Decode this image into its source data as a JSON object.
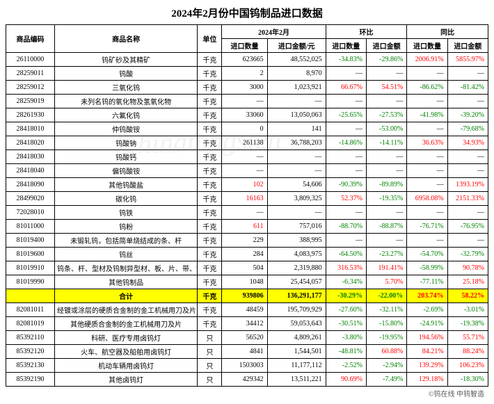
{
  "title": "2024年2月份中国钨制品进口数据",
  "footer": "©钨在线  中钨智造",
  "watermark": "chinatungsten",
  "headers": {
    "code": "商品编码",
    "name": "商品名称",
    "unit": "单位",
    "period": "2024年2月",
    "mom": "环比",
    "yoy": "同比",
    "qty": "进口数量",
    "amt": "进口金额/元",
    "amt2": "进口金额"
  },
  "rows": [
    {
      "code": "26110000",
      "name": "钨矿砂及其精矿",
      "unit": "千克",
      "qty": "623665",
      "amt": "48,552,025",
      "mom_qty": "-34.83%",
      "mom_amt": "-29.86%",
      "yoy_qty": "2006.91%",
      "yoy_amt": "5855.97%"
    },
    {
      "code": "28259011",
      "name": "钨酸",
      "unit": "千克",
      "qty": "2",
      "amt": "8,970",
      "mom_qty": "—",
      "mom_amt": "—",
      "yoy_qty": "—",
      "yoy_amt": "—"
    },
    {
      "code": "28259012",
      "name": "三氧化钨",
      "unit": "千克",
      "qty": "3000",
      "amt": "1,023,921",
      "mom_qty": "66.67%",
      "mom_amt": "54.51%",
      "yoy_qty": "-86.62%",
      "yoy_amt": "-81.42%"
    },
    {
      "code": "28259019",
      "name": "未列名钨的氧化物及氢氧化物",
      "unit": "千克",
      "qty": "—",
      "amt": "—",
      "mom_qty": "—",
      "mom_amt": "—",
      "yoy_qty": "—",
      "yoy_amt": "—"
    },
    {
      "code": "28261930",
      "name": "六氟化钨",
      "unit": "千克",
      "qty": "33060",
      "amt": "13,050,063",
      "mom_qty": "-25.65%",
      "mom_amt": "-27.53%",
      "yoy_qty": "-41.98%",
      "yoy_amt": "-39.20%"
    },
    {
      "code": "28418010",
      "name": "仲钨酸铵",
      "unit": "千克",
      "qty": "0",
      "amt": "141",
      "mom_qty": "—",
      "mom_amt": "-53.00%",
      "yoy_qty": "—",
      "yoy_amt": "-79.68%"
    },
    {
      "code": "28418020",
      "name": "钨酸钠",
      "unit": "千克",
      "qty": "261138",
      "amt": "36,788,203",
      "mom_qty": "-14.86%",
      "mom_amt": "-14.11%",
      "yoy_qty": "36.63%",
      "yoy_amt": "34.93%"
    },
    {
      "code": "28418030",
      "name": "钨酸钙",
      "unit": "千克",
      "qty": "—",
      "amt": "—",
      "mom_qty": "—",
      "mom_amt": "—",
      "yoy_qty": "—",
      "yoy_amt": "—"
    },
    {
      "code": "28418040",
      "name": "偏钨酸铵",
      "unit": "千克",
      "qty": "—",
      "amt": "—",
      "mom_qty": "—",
      "mom_amt": "—",
      "yoy_qty": "—",
      "yoy_amt": "—"
    },
    {
      "code": "28418090",
      "name": "其他钨酸盐",
      "unit": "千克",
      "qty": "102",
      "amt": "54,606",
      "mom_qty": "-90.39%",
      "mom_amt": "-89.89%",
      "yoy_qty": "—",
      "yoy_amt": "1393.19%",
      "qty_pos": true
    },
    {
      "code": "28499020",
      "name": "碳化钨",
      "unit": "千克",
      "qty": "16163",
      "amt": "3,809,325",
      "mom_qty": "52.37%",
      "mom_amt": "-19.35%",
      "yoy_qty": "6958.08%",
      "yoy_amt": "2151.33%",
      "qty_pos": true
    },
    {
      "code": "72028010",
      "name": "钨铁",
      "unit": "千克",
      "qty": "—",
      "amt": "—",
      "mom_qty": "—",
      "mom_amt": "—",
      "yoy_qty": "—",
      "yoy_amt": "—"
    },
    {
      "code": "81011000",
      "name": "钨粉",
      "unit": "千克",
      "qty": "611",
      "amt": "757,016",
      "mom_qty": "-88.70%",
      "mom_amt": "-88.87%",
      "yoy_qty": "-76.71%",
      "yoy_amt": "-76.95%",
      "qty_pos": true
    },
    {
      "code": "81019400",
      "name": "未锻轧钨，包括简单烧结成的条、杆",
      "unit": "千克",
      "qty": "229",
      "amt": "388,995",
      "mom_qty": "—",
      "mom_amt": "—",
      "yoy_qty": "—",
      "yoy_amt": "—"
    },
    {
      "code": "81019600",
      "name": "钨丝",
      "unit": "千克",
      "qty": "284",
      "amt": "4,083,975",
      "mom_qty": "-64.50%",
      "mom_amt": "-23.27%",
      "yoy_qty": "-54.70%",
      "yoy_amt": "-32.79%"
    },
    {
      "code": "81019910",
      "name": "钨条、杆、型材及钨制异型材、板、片、带、箔",
      "unit": "千克",
      "qty": "504",
      "amt": "2,319,880",
      "mom_qty": "316.53%",
      "mom_amt": "191.41%",
      "yoy_qty": "-58.99%",
      "yoy_amt": "90.78%"
    },
    {
      "code": "81019990",
      "name": "其他钨制品",
      "unit": "千克",
      "qty": "1048",
      "amt": "25,454,057",
      "mom_qty": "-6.34%",
      "mom_amt": "5.70%",
      "yoy_qty": "-77.11%",
      "yoy_amt": "25.18%"
    },
    {
      "code": "",
      "name": "合计",
      "unit": "千克",
      "qty": "939806",
      "amt": "136,291,177",
      "mom_qty": "-30.29%",
      "mom_amt": "-22.00%",
      "yoy_qty": "203.74%",
      "yoy_amt": "58.22%",
      "total": true
    },
    {
      "code": "82081011",
      "name": "经镀或涂层的硬质合金制的金工机械用刀及片",
      "unit": "千克",
      "qty": "48459",
      "amt": "195,709,929",
      "mom_qty": "-27.60%",
      "mom_amt": "-32.11%",
      "yoy_qty": "-2.69%",
      "yoy_amt": "-3.01%"
    },
    {
      "code": "82081019",
      "name": "其他硬质合金制的金工机械用刀及片",
      "unit": "千克",
      "qty": "34412",
      "amt": "59,053,643",
      "mom_qty": "-30.51%",
      "mom_amt": "-15.80%",
      "yoy_qty": "-24.91%",
      "yoy_amt": "-19.38%"
    },
    {
      "code": "85392110",
      "name": "科研、医疗专用卤钨灯",
      "unit": "只",
      "qty": "56520",
      "amt": "4,809,261",
      "mom_qty": "-3.80%",
      "mom_amt": "-19.95%",
      "yoy_qty": "194.56%",
      "yoy_amt": "55.71%"
    },
    {
      "code": "85392120",
      "name": "火车、航空器及船舶用卤钨灯",
      "unit": "只",
      "qty": "4841",
      "amt": "1,544,501",
      "mom_qty": "-48.81%",
      "mom_amt": "60.88%",
      "yoy_qty": "84.21%",
      "yoy_amt": "88.24%"
    },
    {
      "code": "85392130",
      "name": "机动车辆用卤钨灯",
      "unit": "只",
      "qty": "1503003",
      "amt": "11,177,112",
      "mom_qty": "-2.52%",
      "mom_amt": "-2.94%",
      "yoy_qty": "139.29%",
      "yoy_amt": "106.23%"
    },
    {
      "code": "85392190",
      "name": "其他卤钨灯",
      "unit": "只",
      "qty": "429342",
      "amt": "13,511,221",
      "mom_qty": "90.69%",
      "mom_amt": "-7.49%",
      "yoy_qty": "129.18%",
      "yoy_amt": "-18.30%"
    }
  ]
}
